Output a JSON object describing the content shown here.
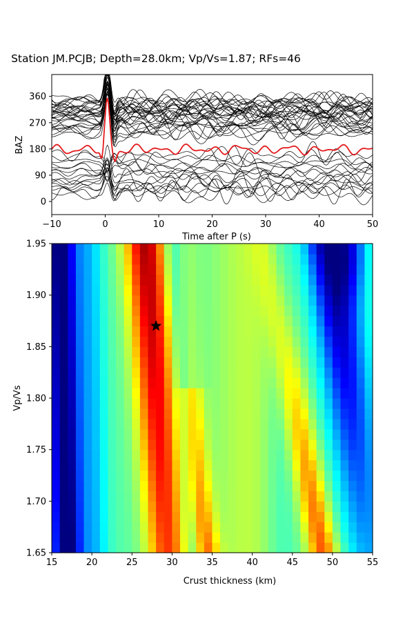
{
  "figure": {
    "title": "Station JM.PCJB; Depth=28.0km; Vp/Vs=1.87; RFs=46"
  },
  "chart_data": [
    {
      "type": "line",
      "panel": "receiver-functions",
      "xlabel": "Time after P (s)",
      "ylabel": "BAZ",
      "xlim": [
        -10,
        50
      ],
      "ylim": [
        -45,
        435
      ],
      "xticks": [
        "−10",
        "0",
        "10",
        "20",
        "30",
        "40",
        "50"
      ],
      "xtick_values": [
        -10,
        0,
        10,
        20,
        30,
        40,
        50
      ],
      "yticks": [
        "0",
        "90",
        "180",
        "270",
        "360"
      ],
      "ytick_values": [
        0,
        90,
        180,
        270,
        360
      ],
      "rf_count": 46,
      "trace_baz": [
        22,
        33,
        40,
        48,
        55,
        62,
        70,
        78,
        90,
        100,
        108,
        118,
        128,
        140,
        150,
        160,
        230,
        236,
        242,
        248,
        254,
        260,
        265,
        270,
        275,
        280,
        285,
        290,
        295,
        298,
        301,
        304,
        307,
        310,
        313,
        316,
        319,
        322,
        326,
        330,
        334,
        338,
        342,
        346,
        350,
        356
      ],
      "stack_baseline": 178,
      "trace_color": "#000000",
      "stack_color": "#e41a1c",
      "grid": false
    },
    {
      "type": "heatmap",
      "panel": "h-k-stacking",
      "xlabel": "Crust thickness (km)",
      "ylabel": "Vp/Vs",
      "xlim": [
        15,
        55
      ],
      "ylim": [
        1.65,
        1.95
      ],
      "xticks": [
        "15",
        "20",
        "25",
        "30",
        "35",
        "40",
        "45",
        "50",
        "55"
      ],
      "xtick_values": [
        15,
        20,
        25,
        30,
        35,
        40,
        45,
        50,
        55
      ],
      "yticks": [
        "1.65",
        "1.70",
        "1.75",
        "1.80",
        "1.85",
        "1.90",
        "1.95"
      ],
      "ytick_values": [
        1.65,
        1.7,
        1.75,
        1.8,
        1.85,
        1.9,
        1.95
      ],
      "colormap": "jet",
      "grid_nx": 40,
      "grid_ny": 30,
      "best_h": 28.0,
      "best_k": 1.87,
      "marker": "star"
    }
  ]
}
